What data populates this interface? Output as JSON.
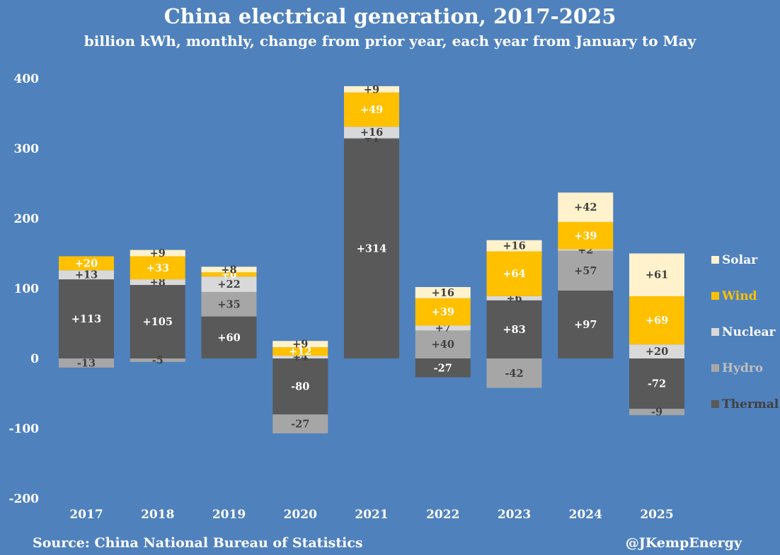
{
  "chart_data": {
    "type": "bar",
    "stacked": true,
    "title": "China electrical generation, 2017-2025",
    "subtitle": "billion kWh, monthly, change from prior year, each year from January to May",
    "categories": [
      "2017",
      "2018",
      "2019",
      "2020",
      "2021",
      "2022",
      "2023",
      "2024",
      "2025"
    ],
    "series": [
      {
        "name": "Thermal",
        "color": "#595959",
        "label_color": "#ffffff",
        "values": [
          113,
          105,
          60,
          -80,
          314,
          -27,
          83,
          97,
          -72
        ]
      },
      {
        "name": "Hydro",
        "color": "#a6a6a6",
        "label_color": "#404040",
        "values": [
          -13,
          -5,
          35,
          -27,
          1,
          40,
          -42,
          57,
          -9
        ]
      },
      {
        "name": "Nuclear",
        "color": "#d9d9d9",
        "label_color": "#404040",
        "values": [
          13,
          8,
          22,
          4,
          16,
          7,
          6,
          2,
          20
        ]
      },
      {
        "name": "Wind",
        "color": "#ffc000",
        "label_color": "#ffffff",
        "values": [
          20,
          33,
          6,
          12,
          49,
          39,
          64,
          39,
          69
        ]
      },
      {
        "name": "Solar",
        "color": "#fff2cc",
        "label_color": "#404040",
        "values": [
          0,
          9,
          8,
          9,
          9,
          16,
          16,
          42,
          61
        ]
      }
    ],
    "ylim": [
      -200,
      400
    ],
    "yticks": [
      -200,
      -100,
      0,
      100,
      200,
      300,
      400
    ],
    "xlabel": "",
    "ylabel": "",
    "legend_position": "right",
    "legend_order": [
      "Solar",
      "Wind",
      "Nuclear",
      "Hydro",
      "Thermal"
    ],
    "legend_text_colors": {
      "Solar": "#ffffff",
      "Wind": "#ffc000",
      "Nuclear": "#ffffff",
      "Hydro": "#bfbfbf",
      "Thermal": "#404040"
    }
  },
  "footer": {
    "source": "Source: China National Bureau of Statistics",
    "credit": "@JKempEnergy"
  },
  "colors": {
    "background": "#4f81bd",
    "text": "#ffffff"
  }
}
